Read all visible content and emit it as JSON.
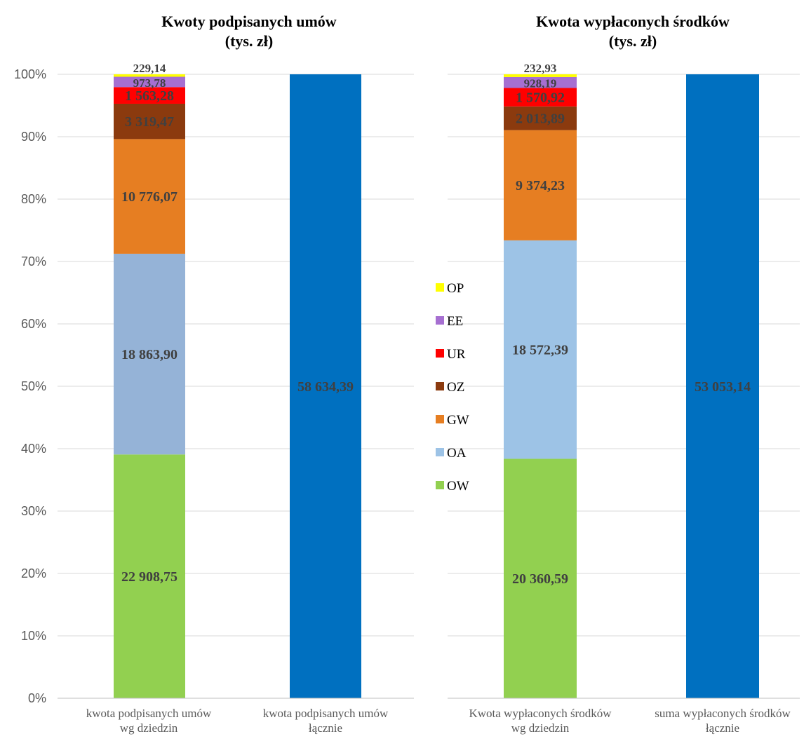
{
  "chart_data": [
    {
      "type": "bar",
      "stacked": "percent",
      "title": "Kwoty podpisanych umów",
      "subtitle": "(tys. zł)",
      "yticks": [
        "0%",
        "10%",
        "20%",
        "30%",
        "40%",
        "50%",
        "60%",
        "70%",
        "80%",
        "90%",
        "100%"
      ],
      "ylim": [
        0,
        100
      ],
      "grid": true,
      "categories": [
        "kwota podpisanych umów wg dziedzin",
        "kwota podpisanych umów łącznie"
      ],
      "category_lines": [
        [
          "kwota podpisanych umów",
          "wg dziedzin"
        ],
        [
          "kwota podpisanych umów",
          "łącznie"
        ]
      ],
      "series": [
        {
          "name": "OW",
          "color": "#92d050",
          "values": [
            22908.75,
            null
          ],
          "labels": [
            "22 908,75",
            ""
          ]
        },
        {
          "name": "OA",
          "color": "#95b3d7",
          "values": [
            18863.9,
            null
          ],
          "labels": [
            "18 863,90",
            ""
          ]
        },
        {
          "name": "GW",
          "color": "#e67e22",
          "values": [
            10776.07,
            null
          ],
          "labels": [
            "10 776,07",
            ""
          ]
        },
        {
          "name": "OZ",
          "color": "#8b3a0e",
          "values": [
            3319.47,
            null
          ],
          "labels": [
            "3 319,47",
            ""
          ]
        },
        {
          "name": "UR",
          "color": "#ff0000",
          "values": [
            1563.28,
            null
          ],
          "labels": [
            "1 563,28",
            ""
          ]
        },
        {
          "name": "EE",
          "color": "#a66fd1",
          "values": [
            973.78,
            null
          ],
          "labels": [
            "973,78",
            ""
          ]
        },
        {
          "name": "OP",
          "color": "#ffff00",
          "values": [
            229.14,
            null
          ],
          "labels": [
            "229,14",
            ""
          ]
        },
        {
          "name": "",
          "color": "#0070c0",
          "values": [
            null,
            58634.39
          ],
          "labels": [
            "",
            "58 634,39"
          ]
        }
      ]
    },
    {
      "type": "bar",
      "stacked": "percent",
      "title": "Kwota wypłaconych środków",
      "subtitle": "(tys. zł)",
      "ylim": [
        0,
        100
      ],
      "grid": true,
      "categories": [
        "Kwota wypłaconych środków wg dziedzin",
        "suma wypłaconych środków łącznie"
      ],
      "category_lines": [
        [
          "Kwota wypłaconych środków",
          "wg dziedzin"
        ],
        [
          "suma wypłaconych środków",
          "łącznie"
        ]
      ],
      "legend_position": "left",
      "series": [
        {
          "name": "OW",
          "color": "#92d050",
          "values": [
            20360.59,
            null
          ],
          "labels": [
            "20 360,59",
            ""
          ]
        },
        {
          "name": "OA",
          "color": "#9dc3e6",
          "values": [
            18572.39,
            null
          ],
          "labels": [
            "18 572,39",
            ""
          ]
        },
        {
          "name": "GW",
          "color": "#e67e22",
          "values": [
            9374.23,
            null
          ],
          "labels": [
            "9 374,23",
            ""
          ]
        },
        {
          "name": "OZ",
          "color": "#8b3a0e",
          "values": [
            2013.89,
            null
          ],
          "labels": [
            "2 013,89",
            ""
          ]
        },
        {
          "name": "UR",
          "color": "#ff0000",
          "values": [
            1570.92,
            null
          ],
          "labels": [
            "1 570,92",
            ""
          ]
        },
        {
          "name": "EE",
          "color": "#a66fd1",
          "values": [
            928.19,
            null
          ],
          "labels": [
            "928,19",
            ""
          ]
        },
        {
          "name": "OP",
          "color": "#ffff00",
          "values": [
            232.93,
            null
          ],
          "labels": [
            "232,93",
            ""
          ]
        },
        {
          "name": "",
          "color": "#0070c0",
          "values": [
            null,
            53053.14
          ],
          "labels": [
            "",
            "53 053,14"
          ]
        }
      ]
    }
  ]
}
